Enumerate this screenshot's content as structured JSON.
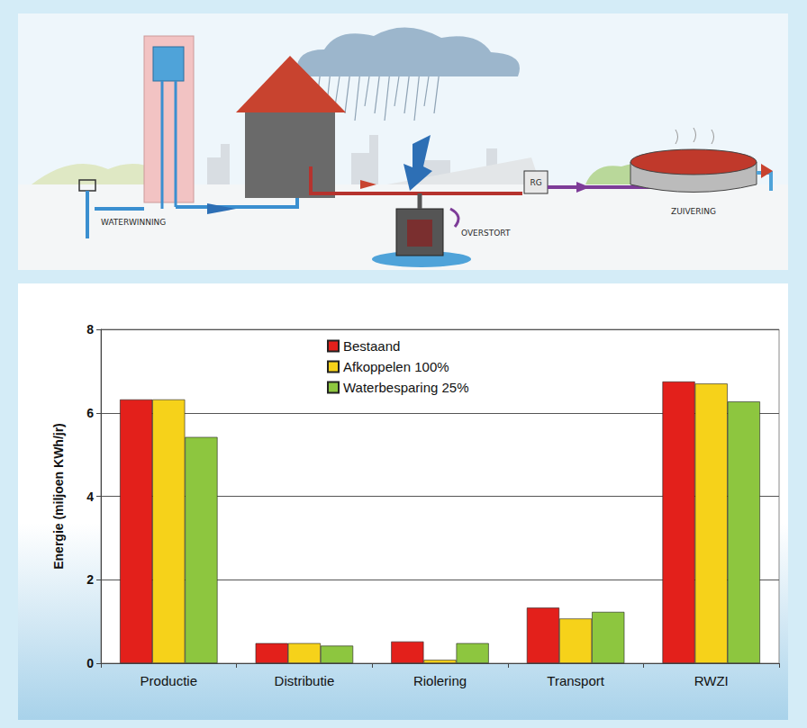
{
  "illustration": {
    "labels": {
      "winning": "WATERWINNING",
      "overstort": "OVERSTORT",
      "zuivering": "ZUIVERING",
      "rg": "RG"
    }
  },
  "chart_data": {
    "type": "bar",
    "y_label": "Energie (miljoen KWh/jr)",
    "categories": [
      "Productie",
      "Distributie",
      "Riolering",
      "Transport",
      "RWZI"
    ],
    "series": [
      {
        "name": "Bestaand",
        "color": "#e3201b",
        "values": [
          6.32,
          0.48,
          0.52,
          1.33,
          6.75
        ]
      },
      {
        "name": "Afkoppelen 100%",
        "color": "#f6d21a",
        "values": [
          6.32,
          0.48,
          0.08,
          1.07,
          6.7
        ]
      },
      {
        "name": "Waterbesparing 25%",
        "color": "#8dc63f",
        "values": [
          5.42,
          0.42,
          0.48,
          1.23,
          6.27
        ]
      }
    ],
    "ylim": [
      0,
      8
    ],
    "yticks": [
      0,
      2,
      4,
      6,
      8
    ],
    "grid": true,
    "legend": "top"
  }
}
